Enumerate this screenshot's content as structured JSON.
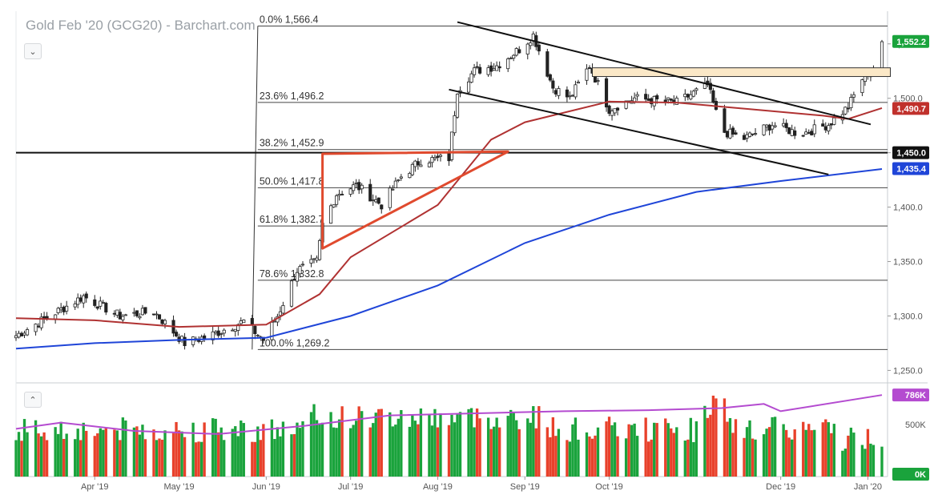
{
  "title": "Gold Feb '20 (GCG20) - Barchart.com",
  "icons": {
    "collapse_price": "chevron-down-icon",
    "collapse_volume": "chevron-up-icon"
  },
  "colors": {
    "up": "#1aa33c",
    "down": "#e8412b",
    "ma50": "#b03232",
    "ma200": "#1f45d8",
    "volume_avg": "#b44bd0",
    "fib_line": "#444444",
    "box_fill": "#fbe8c7",
    "badge_green": "#1aa33c",
    "badge_red": "#c0312c",
    "badge_black": "#111111",
    "badge_blue": "#1f45d8",
    "badge_purple": "#b44bd0",
    "pattern": "#e04a2e"
  },
  "chart_data": {
    "type": "candlestick",
    "title": "Gold Feb '20 (GCG20) - Barchart.com",
    "x_labels": [
      "Apr '19",
      "May '19",
      "Jun '19",
      "Jul '19",
      "Aug '19",
      "Sep '19",
      "Oct '19",
      "Dec '19",
      "Jan '20"
    ],
    "x_label_dates": [
      "2019-04-01",
      "2019-05-01",
      "2019-06-01",
      "2019-07-01",
      "2019-08-01",
      "2019-09-01",
      "2019-10-01",
      "2019-12-01",
      "2020-01-01"
    ],
    "x_range": [
      "2019-03-04",
      "2020-01-08"
    ],
    "price_axis": {
      "ticks": [
        "1,550.0",
        "1,500.0",
        "1,450.0",
        "1,400.0",
        "1,350.0",
        "1,300.0",
        "1,250.0"
      ],
      "tick_values": [
        1550,
        1500,
        1450,
        1400,
        1350,
        1300,
        1250
      ],
      "range": [
        1240,
        1580
      ]
    },
    "volume_axis": {
      "ticks": [
        "500K"
      ],
      "tick_values": [
        500000
      ],
      "range": [
        0,
        880000
      ]
    },
    "price_badges": [
      {
        "label": "1,552.2",
        "value": 1552.2,
        "color": "green"
      },
      {
        "label": "1,490.7",
        "value": 1490.7,
        "color": "red"
      },
      {
        "label": "1,450.0",
        "value": 1450.0,
        "color": "black"
      },
      {
        "label": "1,435.4",
        "value": 1435.4,
        "color": "blue"
      }
    ],
    "volume_badges": [
      {
        "label": "786K",
        "value": 786000,
        "color": "purple"
      },
      {
        "label": "0K",
        "value": 0,
        "color": "green"
      }
    ],
    "fibonacci": {
      "start_date": "2019-05-29",
      "levels": [
        {
          "label": "0.0% 1,566.4",
          "value": 1566.4
        },
        {
          "label": "23.6% 1,496.2",
          "value": 1496.2
        },
        {
          "label": "38.2% 1,452.9",
          "value": 1452.9
        },
        {
          "label": "50.0% 1,417.8",
          "value": 1417.8
        },
        {
          "label": "61.8% 1,382.7",
          "value": 1382.7
        },
        {
          "label": "78.6% 1,332.8",
          "value": 1332.8
        },
        {
          "label": "100.0% 1,269.2",
          "value": 1269.2
        }
      ]
    },
    "horizontal_line": {
      "value": 1450.0
    },
    "resistance_box": {
      "from": "2019-09-25",
      "to": "2020-01-09",
      "low": 1520,
      "high": 1528
    },
    "channel_lines": [
      {
        "from": [
          "2019-08-08",
          1570
        ],
        "to": [
          "2020-01-02",
          1476
        ]
      },
      {
        "from": [
          "2019-08-05",
          1508
        ],
        "to": [
          "2019-12-18",
          1430
        ]
      }
    ],
    "triangle": [
      [
        "2019-06-21",
        1449
      ],
      [
        "2019-08-26",
        1451
      ],
      [
        "2019-06-21",
        1362
      ]
    ],
    "ma50": [
      [
        "2019-03-04",
        1298
      ],
      [
        "2019-04-01",
        1296
      ],
      [
        "2019-05-01",
        1290
      ],
      [
        "2019-06-01",
        1292
      ],
      [
        "2019-06-20",
        1320
      ],
      [
        "2019-07-01",
        1354
      ],
      [
        "2019-08-01",
        1402
      ],
      [
        "2019-08-20",
        1462
      ],
      [
        "2019-09-01",
        1478
      ],
      [
        "2019-10-01",
        1497
      ],
      [
        "2019-10-25",
        1496
      ],
      [
        "2019-11-20",
        1490
      ],
      [
        "2019-12-16",
        1484
      ],
      [
        "2019-12-25",
        1481
      ],
      [
        "2020-01-06",
        1491
      ]
    ],
    "ma200": [
      [
        "2019-03-04",
        1270
      ],
      [
        "2019-04-01",
        1275
      ],
      [
        "2019-05-01",
        1278
      ],
      [
        "2019-06-01",
        1280
      ],
      [
        "2019-07-01",
        1300
      ],
      [
        "2019-08-01",
        1328
      ],
      [
        "2019-09-01",
        1367
      ],
      [
        "2019-10-01",
        1393
      ],
      [
        "2019-11-01",
        1414
      ],
      [
        "2019-12-01",
        1424
      ],
      [
        "2020-01-06",
        1435
      ]
    ],
    "volume_avg": [
      [
        "2019-03-04",
        460000
      ],
      [
        "2019-03-20",
        520000
      ],
      [
        "2019-04-15",
        440000
      ],
      [
        "2019-05-15",
        410000
      ],
      [
        "2019-06-15",
        490000
      ],
      [
        "2019-07-15",
        590000
      ],
      [
        "2019-08-15",
        610000
      ],
      [
        "2019-09-15",
        630000
      ],
      [
        "2019-10-15",
        640000
      ],
      [
        "2019-11-10",
        660000
      ],
      [
        "2019-11-25",
        700000
      ],
      [
        "2019-12-01",
        630000
      ],
      [
        "2020-01-06",
        786000
      ]
    ],
    "anchors": [
      [
        "2019-03-04",
        1282
      ],
      [
        "2019-03-18",
        1303
      ],
      [
        "2019-03-28",
        1318
      ],
      [
        "2019-04-10",
        1300
      ],
      [
        "2019-04-22",
        1304
      ],
      [
        "2019-05-03",
        1275
      ],
      [
        "2019-05-12",
        1282
      ],
      [
        "2019-05-24",
        1295
      ],
      [
        "2019-05-31",
        1278
      ],
      [
        "2019-06-05",
        1300
      ],
      [
        "2019-06-12",
        1342
      ],
      [
        "2019-06-19",
        1350
      ],
      [
        "2019-06-21",
        1384
      ],
      [
        "2019-06-26",
        1412
      ],
      [
        "2019-07-03",
        1420
      ],
      [
        "2019-07-12",
        1402
      ],
      [
        "2019-07-19",
        1428
      ],
      [
        "2019-07-26",
        1443
      ],
      [
        "2019-08-05",
        1445
      ],
      [
        "2019-08-08",
        1508
      ],
      [
        "2019-08-14",
        1525
      ],
      [
        "2019-08-22",
        1530
      ],
      [
        "2019-08-30",
        1545
      ],
      [
        "2019-09-04",
        1558
      ],
      [
        "2019-09-11",
        1510
      ],
      [
        "2019-09-17",
        1500
      ],
      [
        "2019-09-24",
        1530
      ],
      [
        "2019-10-01",
        1490
      ],
      [
        "2019-10-10",
        1500
      ],
      [
        "2019-10-25",
        1496
      ],
      [
        "2019-11-05",
        1512
      ],
      [
        "2019-11-10",
        1470
      ],
      [
        "2019-11-18",
        1463
      ],
      [
        "2019-11-28",
        1476
      ],
      [
        "2019-12-08",
        1467
      ],
      [
        "2019-12-18",
        1476
      ],
      [
        "2019-12-25",
        1492
      ],
      [
        "2019-12-30",
        1518
      ],
      [
        "2020-01-03",
        1528
      ],
      [
        "2020-01-06",
        1552
      ]
    ]
  }
}
